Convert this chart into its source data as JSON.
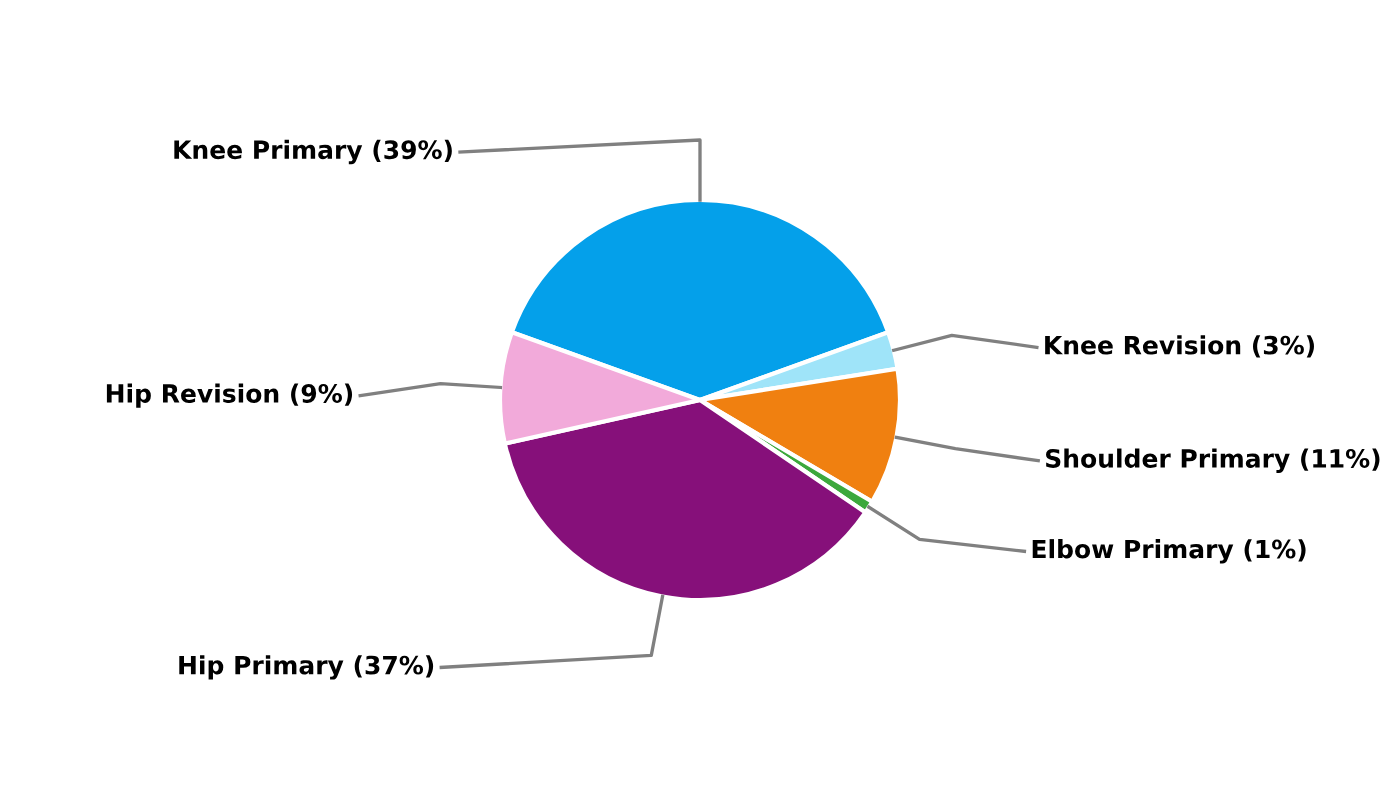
{
  "chart_data": {
    "type": "pie",
    "categories": [
      "Knee Primary (39%)",
      "Knee Revision (3%)",
      "Shoulder Primary (11%)",
      "Elbow Primary (1%)",
      "Hip Primary (37%)",
      "Hip Revision (9%)"
    ],
    "values": [
      39,
      3,
      11,
      1,
      37,
      9
    ],
    "colors": [
      "#04a0ea",
      "#9fe4f9",
      "#f08010",
      "#3ca83c",
      "#86107a",
      "#f2aada"
    ]
  }
}
